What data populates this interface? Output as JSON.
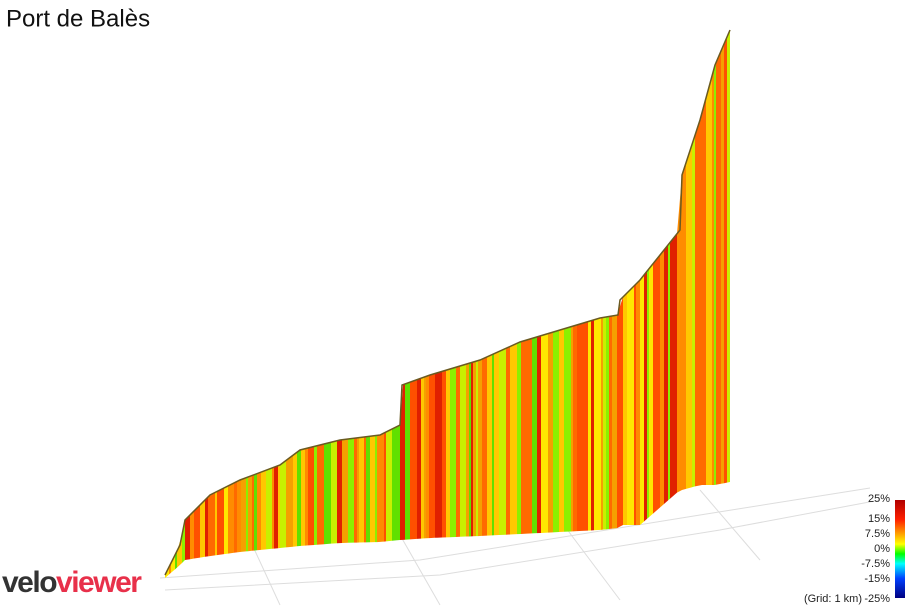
{
  "title": "Port de Balès",
  "legend": {
    "ticks": [
      "25%",
      "15%",
      "7.5%",
      "0%",
      "-7.5%",
      "-15%",
      "-25%"
    ],
    "grid_note": "(Grid: 1 km)"
  },
  "logo": {
    "part1": "velo",
    "part2": "viewer"
  }
}
